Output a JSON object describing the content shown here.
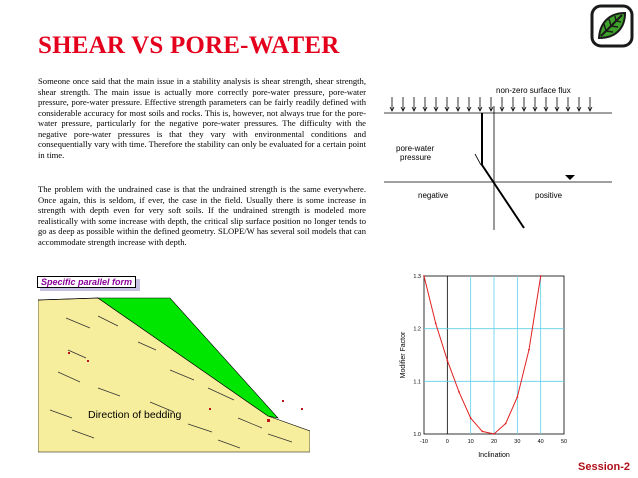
{
  "title": "SHEAR VS PORE-WATER",
  "paragraphs": [
    "Someone once said that the main issue in a stability analysis is shear strength, shear strength, shear strength. The main issue is actually more correctly pore-water pressure, pore-water pressure, pore-water pressure. Effective strength parameters can be fairly readily defined with considerable accuracy for most soils and rocks. This is, however, not always true for the pore-water pressure, particularly for the negative pore-water pressures. The difficulty with the negative pore-water pressures is that they vary with environmental conditions and consequentially vary with time. Therefore the stability can only be evaluated for a certain point in time.",
    "The problem with the undrained case is that the undrained strength is the same everywhere. Once again, this is seldom, if ever, the case in the field. Usually there is some increase in strength with depth even for very soft soils. If the undrained strength is modeled more realistically with some increase with depth, the critical slip surface position no longer tends to go as deep as possible within the defined geometry. SLOPE/W has several soil models that can accommodate strength increase with depth."
  ],
  "pwp_diagram": {
    "flux_label": "non-zero  surface  flux",
    "pwp_label_line1": "pore-water",
    "pwp_label_line2": "pressure",
    "negative_label": "negative",
    "positive_label": "positive"
  },
  "slope_figure": {
    "caption": "Specific parallel form",
    "bedding_label": "Direction of bedding",
    "colors": {
      "slope": "#00e600",
      "soil": "#f6ee9c",
      "caption_text": "#8a0099"
    }
  },
  "chart_data": {
    "type": "line",
    "xlabel": "Inclination",
    "ylabel": "Modifier Factor",
    "xlim": [
      -10,
      50
    ],
    "ylim": [
      1.0,
      1.3
    ],
    "xticks": [
      -10,
      0,
      10,
      20,
      30,
      40,
      50
    ],
    "yticks": [
      1.0,
      1.1,
      1.2,
      1.3
    ],
    "grid": true,
    "series": [
      {
        "color": "#e02020",
        "x": [
          -10,
          -5,
          0,
          5,
          10,
          15,
          20,
          25,
          30,
          35,
          40
        ],
        "y": [
          1.3,
          1.21,
          1.14,
          1.08,
          1.03,
          1.005,
          1.0,
          1.02,
          1.07,
          1.16,
          1.3
        ]
      }
    ]
  },
  "footer": "Session-2",
  "logo_icon": "leaf-icon"
}
